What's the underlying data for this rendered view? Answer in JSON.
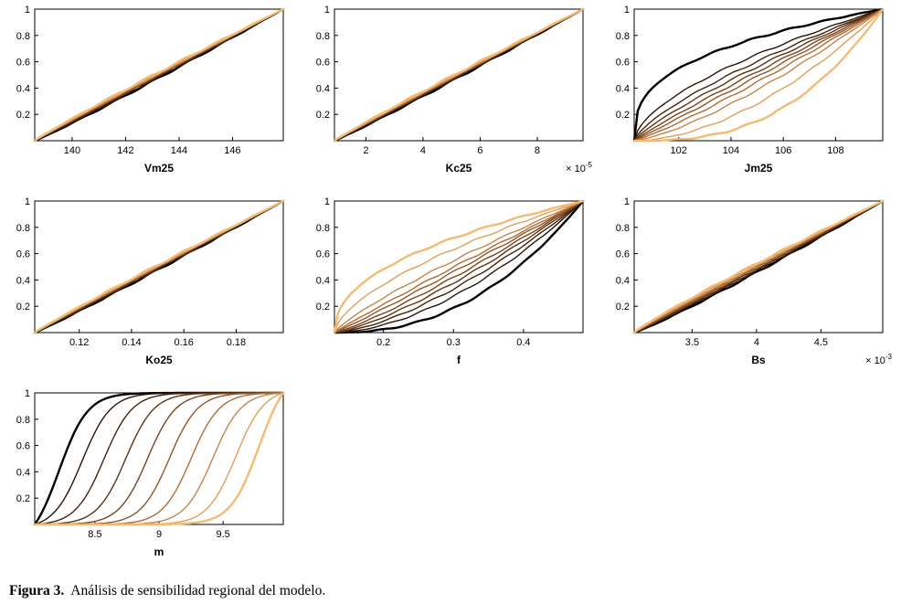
{
  "caption": {
    "label": "Figura 3.",
    "text": "Análisis de sensibilidad regional del modelo."
  },
  "chart_data": {
    "type": "line",
    "description": "Regional sensitivity analysis: empirical CDF curves of model parameters, colored from black to light orange",
    "grid": false,
    "legend": "none",
    "palette": [
      "#000000",
      "#2b1505",
      "#45230a",
      "#5e3312",
      "#78431c",
      "#925627",
      "#ad6c36",
      "#c78448",
      "#e09e5b",
      "#f3ba72"
    ],
    "charts": [
      {
        "xlabel": "Vm25",
        "x_min": 138.6,
        "x_max": 147.9,
        "x_ticks": [
          140,
          142,
          144,
          146
        ],
        "x_tick_labels": [
          "140",
          "142",
          "144",
          "146"
        ],
        "y_min": 0,
        "y_max": 1,
        "y_ticks": [
          0.2,
          0.4,
          0.6,
          0.8,
          1
        ],
        "y_tick_labels": [
          "0.2",
          "0.4",
          "0.6",
          "0.8",
          "1"
        ],
        "curve_model": "power",
        "params": [
          1.06,
          1.04,
          1.02,
          1.01,
          1.0,
          0.99,
          0.98,
          0.97,
          0.955,
          0.94
        ],
        "x_scale": {
          "prefix": "",
          "exp": ""
        }
      },
      {
        "xlabel": "Kc25",
        "x_min": 0.9,
        "x_max": 9.6,
        "x_ticks": [
          2,
          4,
          6,
          8
        ],
        "x_tick_labels": [
          "2",
          "4",
          "6",
          "8"
        ],
        "y_min": 0,
        "y_max": 1,
        "y_ticks": [
          0.2,
          0.4,
          0.6,
          0.8,
          1
        ],
        "y_tick_labels": [
          "0.2",
          "0.4",
          "0.6",
          "0.8",
          "1"
        ],
        "curve_model": "power",
        "params": [
          1.05,
          1.03,
          1.02,
          1.01,
          1.0,
          0.995,
          0.985,
          0.975,
          0.965,
          0.95
        ],
        "x_scale": {
          "prefix": "× 10",
          "exp": "-5"
        }
      },
      {
        "xlabel": "Jm25",
        "x_min": 100.3,
        "x_max": 109.8,
        "x_ticks": [
          102,
          104,
          106,
          108
        ],
        "x_tick_labels": [
          "102",
          "104",
          "106",
          "108"
        ],
        "y_min": 0,
        "y_max": 1,
        "y_ticks": [
          0.2,
          0.4,
          0.6,
          0.8,
          1
        ],
        "y_tick_labels": [
          "0.2",
          "0.4",
          "0.6",
          "0.8",
          "1"
        ],
        "curve_model": "power",
        "params": [
          0.35,
          0.6,
          0.72,
          0.82,
          0.92,
          1.02,
          1.15,
          1.35,
          1.8,
          2.7
        ],
        "x_scale": {
          "prefix": "",
          "exp": ""
        }
      },
      {
        "xlabel": "Ko25",
        "x_min": 0.103,
        "x_max": 0.198,
        "x_ticks": [
          0.12,
          0.14,
          0.16,
          0.18
        ],
        "x_tick_labels": [
          "0.12",
          "0.14",
          "0.16",
          "0.18"
        ],
        "y_min": 0,
        "y_max": 1,
        "y_ticks": [
          0.2,
          0.4,
          0.6,
          0.8,
          1
        ],
        "y_tick_labels": [
          "0.2",
          "0.4",
          "0.6",
          "0.8",
          "1"
        ],
        "curve_model": "power",
        "params": [
          1.05,
          1.035,
          1.02,
          1.01,
          1.0,
          0.99,
          0.98,
          0.97,
          0.96,
          0.95
        ],
        "x_scale": {
          "prefix": "",
          "exp": ""
        }
      },
      {
        "xlabel": "f",
        "x_min": 0.13,
        "x_max": 0.485,
        "x_ticks": [
          0.2,
          0.3,
          0.4
        ],
        "x_tick_labels": [
          "0.2",
          "0.3",
          "0.4"
        ],
        "y_min": 0,
        "y_max": 1,
        "y_ticks": [
          0.2,
          0.4,
          0.6,
          0.8,
          1
        ],
        "y_tick_labels": [
          "0.2",
          "0.4",
          "0.6",
          "0.8",
          "1"
        ],
        "curve_model": "power",
        "params": [
          2.3,
          1.75,
          1.5,
          1.32,
          1.18,
          1.05,
          0.95,
          0.82,
          0.62,
          0.45
        ],
        "x_scale": {
          "prefix": "",
          "exp": ""
        }
      },
      {
        "xlabel": "Bs",
        "x_min": 3.05,
        "x_max": 4.98,
        "x_ticks": [
          3.5,
          4,
          4.5
        ],
        "x_tick_labels": [
          "3.5",
          "4",
          "4.5"
        ],
        "y_min": 0,
        "y_max": 1,
        "y_ticks": [
          0.2,
          0.4,
          0.6,
          0.8,
          1
        ],
        "y_tick_labels": [
          "0.2",
          "0.4",
          "0.6",
          "0.8",
          "1"
        ],
        "curve_model": "power",
        "params": [
          1.1,
          1.07,
          1.05,
          1.03,
          1.01,
          0.99,
          0.97,
          0.95,
          0.93,
          0.91
        ],
        "x_scale": {
          "prefix": "× 10",
          "exp": "-3"
        }
      },
      {
        "xlabel": "m",
        "x_min": 8.03,
        "x_max": 9.97,
        "x_ticks": [
          8.5,
          9,
          9.5
        ],
        "x_tick_labels": [
          "8.5",
          "9",
          "9.5"
        ],
        "y_min": 0,
        "y_max": 1,
        "y_ticks": [
          0.2,
          0.4,
          0.6,
          0.8,
          1
        ],
        "y_tick_labels": [
          "0.2",
          "0.4",
          "0.6",
          "0.8",
          "1"
        ],
        "curve_model": "sigmoid",
        "steepness": 9,
        "params": [
          8.22,
          8.4,
          8.57,
          8.74,
          8.91,
          9.08,
          9.25,
          9.42,
          9.6,
          9.78
        ],
        "x_scale": {
          "prefix": "",
          "exp": ""
        }
      }
    ]
  }
}
